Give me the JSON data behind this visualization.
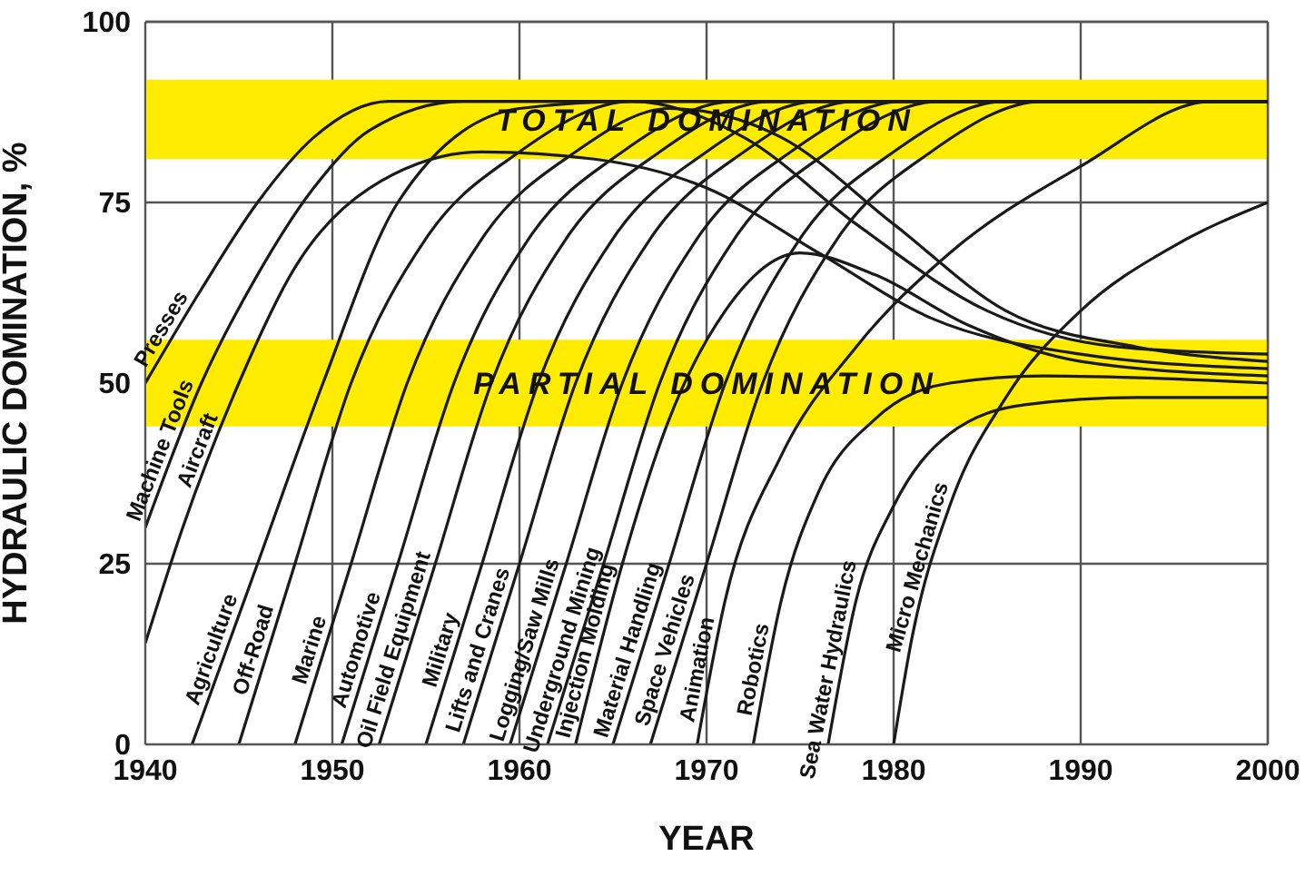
{
  "chart_data": {
    "type": "line",
    "xlabel": "YEAR",
    "ylabel": "HYDRAULIC DOMINATION, %",
    "xlim": [
      1940,
      2000
    ],
    "xticks": [
      1940,
      1950,
      1960,
      1970,
      1980,
      1990,
      2000
    ],
    "ylim": [
      0,
      100
    ],
    "yticks": [
      0,
      25,
      50,
      75,
      100
    ],
    "grid": true,
    "line_style": "solid",
    "bands": [
      {
        "axis": "y",
        "from": 81,
        "to": 92,
        "label": "TOTAL DOMINATION",
        "color": "#ffec00"
      },
      {
        "axis": "y",
        "from": 44,
        "to": 56,
        "label": "PARTIAL DOMINATION",
        "color": "#ffec00"
      }
    ],
    "series": [
      {
        "name": "Presses",
        "color": "#1a1a1a",
        "x": [
          1940,
          1943,
          1946,
          1949,
          1953,
          2000
        ],
        "values": [
          50,
          63,
          75,
          84,
          89,
          89
        ]
      },
      {
        "name": "Machine Tools",
        "color": "#1a1a1a",
        "x": [
          1940,
          1943,
          1946,
          1949,
          1952,
          1957,
          2000
        ],
        "values": [
          30,
          50,
          65,
          77,
          85,
          89,
          89
        ]
      },
      {
        "name": "Aircraft",
        "color": "#1a1a1a",
        "x": [
          1940,
          1942,
          1945,
          1948,
          1952,
          1958,
          1964,
          1970,
          1976,
          1982,
          1990,
          2000
        ],
        "values": [
          14,
          30,
          50,
          66,
          77,
          82,
          81,
          77,
          68,
          59,
          54,
          52
        ]
      },
      {
        "name": "Agriculture",
        "color": "#1a1a1a",
        "x": [
          1942.5,
          1946,
          1949.5,
          1953.5,
          1960,
          1966,
          1972,
          1978,
          1985,
          1992,
          2000
        ],
        "values": [
          0,
          25,
          50,
          75,
          88,
          89,
          84,
          72,
          60,
          55,
          54
        ]
      },
      {
        "name": "Off-Road",
        "color": "#1a1a1a",
        "x": [
          1945,
          1948,
          1951,
          1955,
          1960,
          1966,
          2000
        ],
        "values": [
          0,
          25,
          50,
          70,
          82,
          89,
          89
        ]
      },
      {
        "name": "Marine",
        "color": "#1a1a1a",
        "x": [
          1948,
          1951,
          1954,
          1958,
          1963,
          1968,
          1974,
          1980,
          1986,
          1993,
          2000
        ],
        "values": [
          0,
          25,
          50,
          70,
          82,
          88,
          84,
          72,
          60,
          55,
          53
        ]
      },
      {
        "name": "Automotive",
        "color": "#1a1a1a",
        "x": [
          1950.5,
          1953.5,
          1956.5,
          1960.5,
          1965.5,
          1971.5,
          2000
        ],
        "values": [
          0,
          25,
          50,
          70,
          82,
          89,
          89
        ]
      },
      {
        "name": "Oil Field Equipment",
        "color": "#1a1a1a",
        "x": [
          1952.5,
          1955.5,
          1958.5,
          1962.5,
          1967.5,
          1973.5,
          2000
        ],
        "values": [
          0,
          25,
          50,
          70,
          82,
          89,
          89
        ]
      },
      {
        "name": "Military",
        "color": "#1a1a1a",
        "x": [
          1955,
          1958,
          1961,
          1965,
          1970,
          1976,
          2000
        ],
        "values": [
          0,
          25,
          50,
          70,
          82,
          89,
          89
        ]
      },
      {
        "name": "Lifts and Cranes",
        "color": "#1a1a1a",
        "x": [
          1957,
          1960,
          1963,
          1967,
          1972,
          1978,
          2000
        ],
        "values": [
          0,
          25,
          50,
          70,
          82,
          89,
          89
        ]
      },
      {
        "name": "Logging/Saw Mills",
        "color": "#1a1a1a",
        "x": [
          1959.5,
          1962.5,
          1965.5,
          1969.5,
          1974.5,
          1980.5,
          2000
        ],
        "values": [
          0,
          25,
          50,
          70,
          82,
          89,
          89
        ]
      },
      {
        "name": "Underground Mining",
        "color": "#1a1a1a",
        "x": [
          1961.5,
          1964.5,
          1967.5,
          1971.5,
          1976.5,
          1982.5,
          2000
        ],
        "values": [
          0,
          25,
          50,
          70,
          82,
          89,
          89
        ]
      },
      {
        "name": "Injection Molding",
        "color": "#1a1a1a",
        "x": [
          1963,
          1965.5,
          1968,
          1971,
          1975,
          1979,
          1984,
          1990,
          2000
        ],
        "values": [
          0,
          25,
          45,
          60,
          68,
          65,
          58,
          53,
          51
        ]
      },
      {
        "name": "Material Handling",
        "color": "#1a1a1a",
        "x": [
          1965,
          1968,
          1971,
          1975,
          1980,
          1986,
          2000
        ],
        "values": [
          0,
          25,
          50,
          70,
          82,
          89,
          89
        ]
      },
      {
        "name": "Space Vehicles",
        "color": "#1a1a1a",
        "x": [
          1967,
          1970,
          1973,
          1977,
          1982,
          1988,
          2000
        ],
        "values": [
          0,
          25,
          50,
          70,
          82,
          89,
          89
        ]
      },
      {
        "name": "Animation",
        "color": "#1a1a1a",
        "x": [
          1969.5,
          1971,
          1974,
          1978,
          1983,
          1990,
          1997,
          2000
        ],
        "values": [
          0,
          20,
          40,
          55,
          68,
          80,
          89,
          89
        ]
      },
      {
        "name": "Robotics",
        "color": "#1a1a1a",
        "x": [
          1972.5,
          1974,
          1976,
          1979,
          1983,
          1988,
          2000
        ],
        "values": [
          0,
          20,
          35,
          45,
          50,
          51,
          50
        ]
      },
      {
        "name": "Sea Water Hydraulics",
        "color": "#1a1a1a",
        "x": [
          1976.5,
          1978,
          1980,
          1983,
          1987,
          1993,
          2000
        ],
        "values": [
          0,
          20,
          33,
          43,
          47,
          48,
          48
        ]
      },
      {
        "name": "Micro Mechanics",
        "color": "#1a1a1a",
        "x": [
          1980,
          1981,
          1983,
          1986,
          1990,
          1995,
          2000
        ],
        "values": [
          0,
          15,
          33,
          48,
          60,
          69,
          75
        ]
      }
    ]
  }
}
